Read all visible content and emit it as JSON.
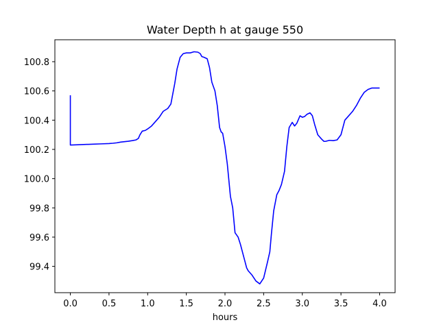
{
  "chart_data": {
    "type": "line",
    "title": "Water Depth h at gauge 550",
    "xlabel": "hours",
    "ylabel": "",
    "xlim": [
      -0.2,
      4.2
    ],
    "ylim": [
      99.22,
      100.95
    ],
    "xticks": [
      0.0,
      0.5,
      1.0,
      1.5,
      2.0,
      2.5,
      3.0,
      3.5,
      4.0
    ],
    "xtick_labels": [
      "0.0",
      "0.5",
      "1.0",
      "1.5",
      "2.0",
      "2.5",
      "3.0",
      "3.5",
      "4.0"
    ],
    "yticks": [
      99.4,
      99.6,
      99.8,
      100.0,
      100.2,
      100.4,
      100.6,
      100.8
    ],
    "ytick_labels": [
      "99.4",
      "99.6",
      "99.8",
      "100.0",
      "100.2",
      "100.4",
      "100.6",
      "100.8"
    ],
    "grid": false,
    "series": [
      {
        "name": "",
        "color": "#0000ff",
        "x": [
          0.0,
          0.0,
          0.01,
          0.1,
          0.2,
          0.3,
          0.4,
          0.5,
          0.55,
          0.6,
          0.65,
          0.7,
          0.75,
          0.8,
          0.85,
          0.88,
          0.9,
          0.93,
          0.97,
          1.0,
          1.05,
          1.1,
          1.15,
          1.2,
          1.23,
          1.26,
          1.3,
          1.35,
          1.38,
          1.42,
          1.46,
          1.5,
          1.55,
          1.6,
          1.65,
          1.68,
          1.7,
          1.73,
          1.77,
          1.8,
          1.83,
          1.87,
          1.9,
          1.93,
          1.95,
          1.97,
          2.0,
          2.03,
          2.07,
          2.1,
          2.13,
          2.17,
          2.2,
          2.25,
          2.28,
          2.3,
          2.35,
          2.4,
          2.45,
          2.5,
          2.55,
          2.58,
          2.6,
          2.63,
          2.67,
          2.7,
          2.73,
          2.77,
          2.8,
          2.83,
          2.87,
          2.9,
          2.93,
          2.97,
          3.0,
          3.03,
          3.06,
          3.1,
          3.13,
          3.16,
          3.2,
          3.25,
          3.28,
          3.3,
          3.35,
          3.4,
          3.45,
          3.5,
          3.55,
          3.6,
          3.65,
          3.7,
          3.75,
          3.8,
          3.85,
          3.9,
          3.95,
          4.0
        ],
        "y": [
          100.57,
          100.23,
          100.23,
          100.232,
          100.234,
          100.236,
          100.238,
          100.24,
          100.242,
          100.245,
          100.25,
          100.253,
          100.256,
          100.26,
          100.265,
          100.275,
          100.3,
          100.325,
          100.33,
          100.34,
          100.36,
          100.39,
          100.42,
          100.46,
          100.47,
          100.48,
          100.51,
          100.65,
          100.75,
          100.83,
          100.855,
          100.86,
          100.86,
          100.868,
          100.865,
          100.855,
          100.835,
          100.83,
          100.82,
          100.76,
          100.66,
          100.6,
          100.5,
          100.35,
          100.32,
          100.31,
          100.22,
          100.1,
          99.88,
          99.8,
          99.63,
          99.6,
          99.55,
          99.45,
          99.39,
          99.37,
          99.34,
          99.3,
          99.28,
          99.32,
          99.43,
          99.5,
          99.62,
          99.78,
          99.89,
          99.92,
          99.96,
          100.05,
          100.22,
          100.35,
          100.385,
          100.36,
          100.38,
          100.43,
          100.42,
          100.425,
          100.44,
          100.45,
          100.43,
          100.37,
          100.3,
          100.27,
          100.255,
          100.255,
          100.262,
          100.26,
          100.265,
          100.3,
          100.4,
          100.43,
          100.46,
          100.5,
          100.55,
          100.59,
          100.61,
          100.62,
          100.62,
          100.62
        ]
      }
    ]
  }
}
